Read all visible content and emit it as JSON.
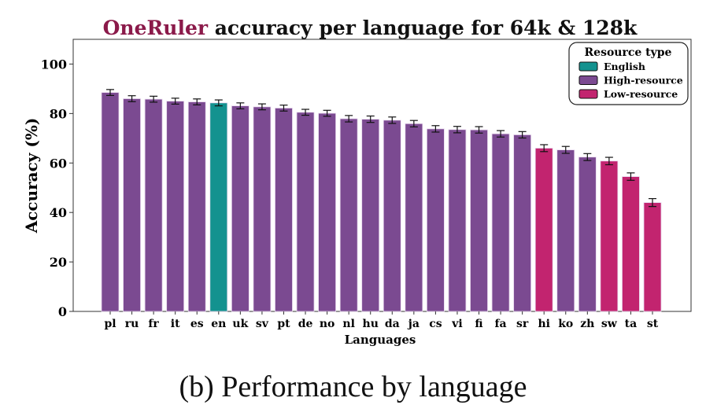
{
  "chart_data": {
    "type": "bar",
    "title_highlight": "OneRuler",
    "title_rest": " accuracy per language for 64k & 128k",
    "xlabel": "Languages",
    "ylabel": "Accuracy (%)",
    "ylim": [
      0,
      110
    ],
    "yticks": [
      0,
      20,
      40,
      60,
      80,
      100
    ],
    "grid": false,
    "legend": {
      "title": "Resource type",
      "placement": "top-right",
      "entries": [
        {
          "label": "English",
          "color": "#13928f"
        },
        {
          "label": "High-resource",
          "color": "#7b4a91"
        },
        {
          "label": "Low-resource",
          "color": "#c2246f"
        }
      ]
    },
    "categories": [
      "pl",
      "ru",
      "fr",
      "it",
      "es",
      "en",
      "uk",
      "sv",
      "pt",
      "de",
      "no",
      "nl",
      "hu",
      "da",
      "ja",
      "cs",
      "vi",
      "fi",
      "fa",
      "sr",
      "hi",
      "ko",
      "zh",
      "sw",
      "ta",
      "st"
    ],
    "values": [
      88.5,
      86.0,
      85.8,
      85.0,
      84.7,
      84.3,
      83.1,
      82.7,
      82.2,
      80.5,
      80.1,
      77.9,
      77.7,
      77.3,
      75.9,
      73.8,
      73.5,
      73.4,
      71.8,
      71.4,
      66.0,
      65.3,
      62.4,
      60.8,
      54.5,
      44.0
    ],
    "errors": [
      1.2,
      1.2,
      1.2,
      1.2,
      1.2,
      1.2,
      1.2,
      1.2,
      1.2,
      1.2,
      1.2,
      1.3,
      1.3,
      1.3,
      1.3,
      1.3,
      1.3,
      1.3,
      1.3,
      1.3,
      1.4,
      1.4,
      1.4,
      1.5,
      1.5,
      1.6
    ],
    "groups": [
      "High-resource",
      "High-resource",
      "High-resource",
      "High-resource",
      "High-resource",
      "English",
      "High-resource",
      "High-resource",
      "High-resource",
      "High-resource",
      "High-resource",
      "High-resource",
      "High-resource",
      "High-resource",
      "High-resource",
      "High-resource",
      "High-resource",
      "High-resource",
      "High-resource",
      "High-resource",
      "Low-resource",
      "High-resource",
      "High-resource",
      "Low-resource",
      "Low-resource",
      "Low-resource"
    ]
  },
  "title_color": "#8b1a4a",
  "caption": "(b) Performance by language"
}
